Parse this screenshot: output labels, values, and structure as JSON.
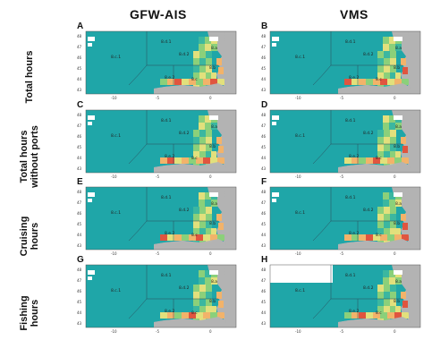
{
  "columns": [
    "GFW-AIS",
    "VMS"
  ],
  "rows": [
    {
      "label_lines": [
        "Total hours"
      ]
    },
    {
      "label_lines": [
        "Total hours",
        "without ports"
      ]
    },
    {
      "label_lines": [
        "Cruising",
        "hours"
      ]
    },
    {
      "label_lines": [
        "Fishing",
        "hours"
      ]
    }
  ],
  "panel_letters": [
    "A",
    "B",
    "C",
    "D",
    "E",
    "F",
    "G",
    "H"
  ],
  "y_ticks": [
    "48",
    "47",
    "46",
    "45",
    "44",
    "43"
  ],
  "x_ticks": [
    "-10",
    "-5",
    "0"
  ],
  "areas": [
    "8.c.1",
    "8.d.1",
    "8.d.2",
    "8.a",
    "8.b",
    "8.e.2",
    "8.c"
  ],
  "colors": {
    "base": "#1fa6a8",
    "land": "#b3b3b3",
    "low": "#3bb7a0",
    "mid": "#8bd07a",
    "midhigh": "#e2e07c",
    "high": "#f2b36a",
    "veryhigh": "#e0553f"
  }
}
